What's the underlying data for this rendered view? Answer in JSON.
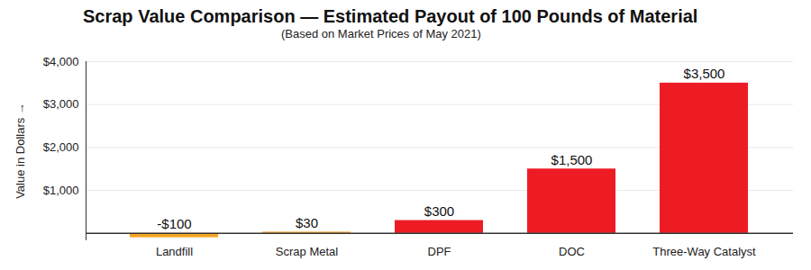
{
  "chart_data": {
    "type": "bar",
    "title": "Scrap Value Comparison — Estimated Payout of 100 Pounds of Material",
    "subtitle": "(Based on Market Prices of May 2021)",
    "y_label": "Value in Dollars",
    "categories": [
      "Landfill",
      "Scrap Metal",
      "DPF",
      "DOC",
      "Three-Way Catalyst"
    ],
    "values": [
      -100,
      30,
      300,
      1500,
      3500
    ],
    "value_labels": [
      "-$100",
      "$30",
      "$300",
      "$1,500",
      "$3,500"
    ],
    "colors": [
      "#f5a623",
      "#f5a623",
      "#ed1c24",
      "#ed1c24",
      "#ed1c24"
    ],
    "ylim": [
      -150,
      4000
    ],
    "yticks": [
      {
        "value": 1000,
        "label": "$1,000"
      },
      {
        "value": 2000,
        "label": "$2,000"
      },
      {
        "value": 3000,
        "label": "$3,000"
      },
      {
        "value": 4000,
        "label": "$4,000"
      }
    ],
    "grid": true,
    "data_labels": true
  }
}
